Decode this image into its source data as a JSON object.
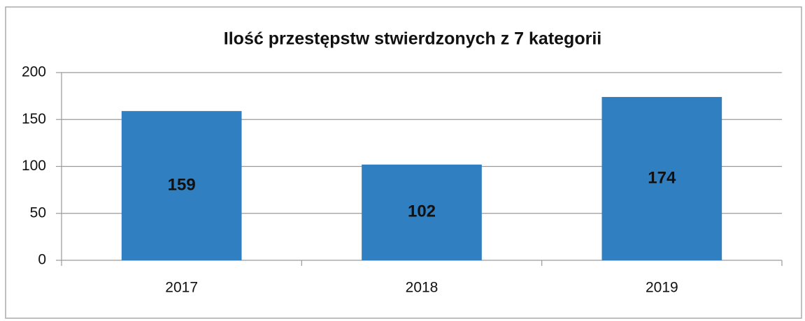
{
  "chart_data": {
    "type": "bar",
    "title": "Ilość przestępstw stwierdzonych z 7 kategorii",
    "categories": [
      "2017",
      "2018",
      "2019"
    ],
    "values": [
      159,
      102,
      174
    ],
    "color": "#2f7fc1",
    "ylim": [
      0,
      200
    ],
    "yticks": [
      0,
      50,
      100,
      150,
      200
    ],
    "grid": true,
    "data_labels": true
  }
}
